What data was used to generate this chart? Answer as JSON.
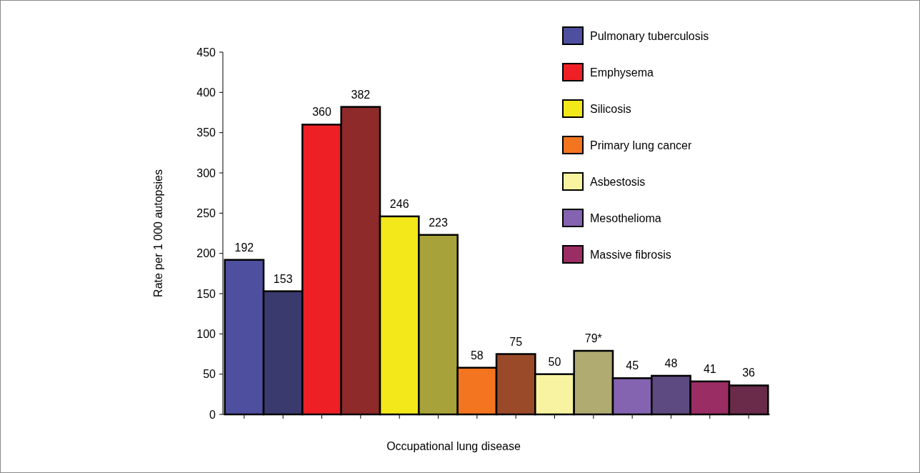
{
  "chart_data": {
    "type": "bar",
    "stacked": true,
    "xlabel": "Occupational lung disease",
    "ylabel": "Rate per 1 000 autopsies",
    "categories": [
      null,
      null,
      null,
      null,
      null,
      null,
      null,
      null,
      null,
      null,
      null,
      null,
      null,
      null
    ],
    "series": [
      {
        "name": "Pulmonary tuberculosis",
        "color": "#4f4fa0",
        "colors": [
          "#4f4fa0",
          "#3a3a6e",
          null,
          null,
          null,
          null,
          null,
          null,
          null,
          null,
          null,
          null,
          null,
          null
        ],
        "values": [
          192,
          153,
          null,
          null,
          null,
          null,
          null,
          null,
          null,
          null,
          null,
          null,
          null,
          null
        ],
        "value_labels": [
          "192",
          "153",
          null,
          null,
          null,
          null,
          null,
          null,
          null,
          null,
          null,
          null,
          null,
          null
        ]
      },
      {
        "name": "Emphysema",
        "color": "#ee2025",
        "colors": [
          null,
          null,
          "#ee2025",
          "#8e2a2a",
          null,
          null,
          null,
          null,
          null,
          null,
          null,
          null,
          null,
          null
        ],
        "values": [
          null,
          null,
          360,
          382,
          null,
          null,
          null,
          null,
          null,
          null,
          null,
          null,
          null,
          null
        ],
        "value_labels": [
          null,
          null,
          "360",
          "382",
          null,
          null,
          null,
          null,
          null,
          null,
          null,
          null,
          null,
          null
        ]
      },
      {
        "name": "Silicosis",
        "color": "#f2e81a",
        "colors": [
          null,
          null,
          null,
          null,
          "#f2e81a",
          "#a8a23a",
          null,
          null,
          null,
          null,
          null,
          null,
          null,
          null
        ],
        "values": [
          null,
          null,
          null,
          null,
          246,
          223,
          null,
          null,
          null,
          null,
          null,
          null,
          null,
          null
        ],
        "value_labels": [
          null,
          null,
          null,
          null,
          "246",
          "223",
          null,
          null,
          null,
          null,
          null,
          null,
          null,
          null
        ]
      },
      {
        "name": "Primary lung cancer",
        "color": "#f47520",
        "colors": [
          null,
          null,
          null,
          null,
          null,
          null,
          "#f47520",
          "#9a4a28",
          null,
          null,
          null,
          null,
          null,
          null
        ],
        "values": [
          null,
          null,
          null,
          null,
          null,
          null,
          58,
          75,
          null,
          null,
          null,
          null,
          null,
          null
        ],
        "value_labels": [
          null,
          null,
          null,
          null,
          null,
          null,
          "58",
          "75",
          null,
          null,
          null,
          null,
          null,
          null
        ]
      },
      {
        "name": "Asbestosis",
        "color": "#f8f3a0",
        "colors": [
          null,
          null,
          null,
          null,
          null,
          null,
          null,
          null,
          "#f8f3a0",
          "#b0ab70",
          null,
          null,
          null,
          null
        ],
        "values": [
          null,
          null,
          null,
          null,
          null,
          null,
          null,
          null,
          50,
          79,
          null,
          null,
          null,
          null
        ],
        "value_labels": [
          null,
          null,
          null,
          null,
          null,
          null,
          null,
          null,
          "50",
          "79*",
          null,
          null,
          null,
          null
        ]
      },
      {
        "name": "Mesothelioma",
        "color": "#8463b0",
        "colors": [
          null,
          null,
          null,
          null,
          null,
          null,
          null,
          null,
          null,
          null,
          "#8463b0",
          "#5c4a80",
          null,
          null
        ],
        "values": [
          null,
          null,
          null,
          null,
          null,
          null,
          null,
          null,
          null,
          null,
          45,
          48,
          null,
          null
        ],
        "value_labels": [
          null,
          null,
          null,
          null,
          null,
          null,
          null,
          null,
          null,
          null,
          "45",
          "48",
          null,
          null
        ]
      },
      {
        "name": "Massive fibrosis",
        "color": "#9a2d63",
        "colors": [
          null,
          null,
          null,
          null,
          null,
          null,
          null,
          null,
          null,
          null,
          null,
          null,
          "#9a2d63",
          "#6a2a4a"
        ],
        "values": [
          null,
          null,
          null,
          null,
          null,
          null,
          null,
          null,
          null,
          null,
          null,
          null,
          41,
          36
        ],
        "value_labels": [
          null,
          null,
          null,
          null,
          null,
          null,
          null,
          null,
          null,
          null,
          null,
          null,
          "41",
          "36"
        ]
      }
    ],
    "ylim": [
      0,
      450
    ],
    "yticks": [
      0,
      50,
      100,
      150,
      200,
      250,
      300,
      350,
      400,
      450
    ],
    "legend": "top right"
  }
}
